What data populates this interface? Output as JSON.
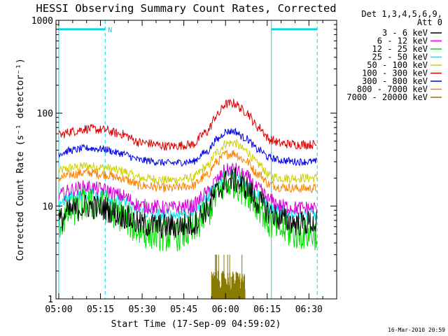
{
  "chart_data": {
    "type": "line",
    "title": "HESSI Observing Summary Count Rates, Corrected",
    "xlabel": "Start Time (17-Sep-09 04:59:02)",
    "ylabel": "Corrected Count Rate (s⁻¹ detector⁻¹)",
    "yscale": "log",
    "ylim": [
      1,
      1000
    ],
    "xlim_minutes": [
      -1,
      100
    ],
    "x_ticks": [
      {
        "label": "05:00",
        "min": 0
      },
      {
        "label": "05:15",
        "min": 15
      },
      {
        "label": "05:30",
        "min": 30
      },
      {
        "label": "05:45",
        "min": 45
      },
      {
        "label": "06:00",
        "min": 60
      },
      {
        "label": "06:15",
        "min": 75
      },
      {
        "label": "06:30",
        "min": 90
      }
    ],
    "y_ticks": [
      {
        "label": "1",
        "value": 1
      },
      {
        "label": "10",
        "value": 10
      },
      {
        "label": "100",
        "value": 100
      },
      {
        "label": "1000",
        "value": 1000
      }
    ],
    "legend_header": [
      "Det 1,3,4,5,6,9,",
      "Att 0"
    ],
    "legend_position": "right",
    "timestamp": "16-Mar-2010 20:59",
    "night_label": "N",
    "night_intervals_min": [
      [
        0,
        16.7
      ],
      [
        76.5,
        93
      ]
    ],
    "x_knots_min": [
      0,
      5,
      10,
      16,
      22,
      30,
      40,
      48,
      53,
      57,
      60,
      63,
      67,
      72,
      76,
      80,
      86,
      93
    ],
    "series": [
      {
        "name": "3 - 6 keV",
        "color": "#000000",
        "noise": 0.14,
        "values": [
          7,
          9,
          10,
          9.5,
          8,
          6.3,
          6,
          6.3,
          9,
          14,
          18,
          19,
          16,
          11,
          8.5,
          7.2,
          6.5,
          6.5
        ]
      },
      {
        "name": "6 - 12 keV",
        "color": "#d400d4",
        "noise": 0.08,
        "values": [
          13,
          15,
          16,
          15,
          13,
          10,
          9.5,
          10,
          13.5,
          19,
          24,
          25,
          21,
          15,
          11.5,
          10,
          9.5,
          9.5
        ]
      },
      {
        "name": "12 - 25 keV",
        "color": "#00e000",
        "noise": 0.18,
        "values": [
          6.5,
          9,
          10.5,
          10,
          8,
          5.2,
          4.8,
          5.2,
          8,
          13,
          17,
          18,
          15,
          10,
          6.5,
          5.5,
          5,
          5
        ]
      },
      {
        "name": "25 - 50 keV",
        "color": "#00e8e8",
        "noise": 0.07,
        "values": [
          11,
          12.5,
          13.5,
          13,
          11,
          8.5,
          8,
          8.5,
          12,
          17,
          21,
          22,
          18.5,
          13,
          9.5,
          8.5,
          8,
          8
        ]
      },
      {
        "name": "50 - 100 keV",
        "color": "#d0d000",
        "noise": 0.05,
        "values": [
          24,
          26,
          27,
          26,
          24,
          20,
          19,
          20,
          26,
          38,
          47,
          48,
          40,
          28,
          21,
          20,
          20,
          20
        ]
      },
      {
        "name": "100 - 300 keV",
        "color": "#e00000",
        "noise": 0.05,
        "values": [
          58,
          64,
          68,
          66,
          60,
          48,
          44,
          46,
          62,
          95,
          125,
          128,
          105,
          70,
          52,
          47,
          46,
          46
        ]
      },
      {
        "name": "300 - 800 keV",
        "color": "#0000e6",
        "noise": 0.04,
        "values": [
          37,
          40,
          42,
          41,
          37,
          31,
          29,
          30,
          38,
          52,
          63,
          64,
          54,
          40,
          33,
          31,
          30,
          30
        ]
      },
      {
        "name": "800 - 7000 keV",
        "color": "#ff8000",
        "noise": 0.05,
        "values": [
          20,
          22,
          23,
          22,
          20,
          16.5,
          15.5,
          16.5,
          21,
          30,
          36,
          37,
          31,
          22,
          17,
          16,
          15.5,
          15.5
        ]
      },
      {
        "name": "7000 - 20000 keV",
        "color": "#8a7a00",
        "noise": 0,
        "values": [
          1,
          1,
          1,
          1,
          1,
          1,
          1,
          1,
          1,
          1,
          1,
          1,
          1,
          1,
          1,
          1,
          1,
          1
        ],
        "bursts": {
          "start_min": 55,
          "end_min": 67,
          "low": 1.2,
          "high": 2.0,
          "peak": 3.0
        }
      }
    ]
  }
}
